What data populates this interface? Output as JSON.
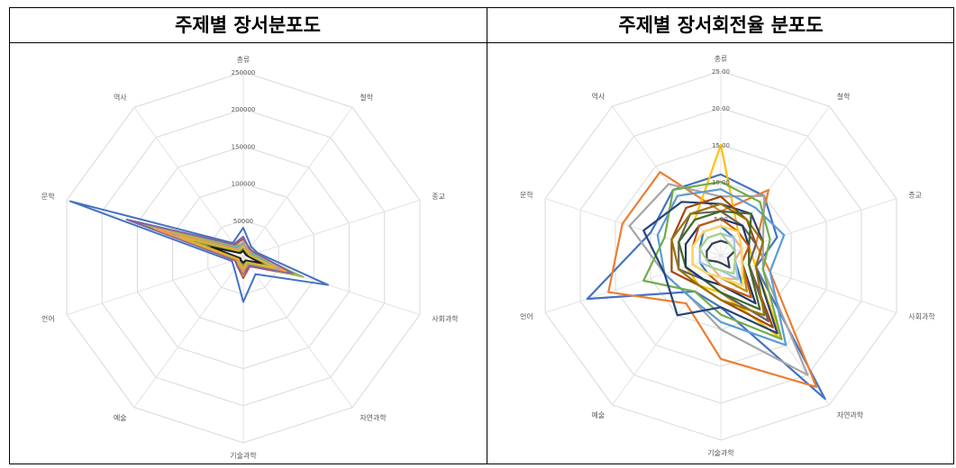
{
  "titles": {
    "left": "주제별 장서분포도",
    "right": "주제별 장서회전율 분포도"
  },
  "chart_data": [
    {
      "type": "radar",
      "title": "주제별 장서분포도",
      "categories": [
        "총류",
        "철학",
        "종교",
        "사회과학",
        "자연과학",
        "기술과학",
        "예술",
        "언어",
        "문학",
        "역사"
      ],
      "rlim": [
        0,
        250000
      ],
      "ticks": [
        "250000",
        "200000",
        "150000",
        "100000",
        "50000"
      ],
      "tick_values": [
        250000,
        200000,
        150000,
        100000,
        50000
      ],
      "grid": true,
      "series": [
        {
          "color": "#4472C4",
          "values": [
            40000,
            18000,
            20000,
            120000,
            28000,
            60000,
            20000,
            16000,
            245000,
            24000
          ]
        },
        {
          "color": "#C0504D",
          "values": [
            25000,
            15000,
            16000,
            80000,
            15000,
            28000,
            14000,
            12000,
            160000,
            20000
          ]
        },
        {
          "color": "#9BBB59",
          "values": [
            20000,
            12000,
            14000,
            85000,
            12000,
            24000,
            12000,
            10000,
            150000,
            18000
          ]
        },
        {
          "color": "#8064A2",
          "values": [
            28000,
            14000,
            18000,
            70000,
            14000,
            22000,
            14000,
            11000,
            165000,
            22000
          ]
        },
        {
          "color": "#4BACC6",
          "values": [
            18000,
            10000,
            12000,
            55000,
            10000,
            18000,
            10000,
            8000,
            110000,
            16000
          ]
        },
        {
          "color": "#F79646",
          "values": [
            16000,
            12000,
            10000,
            60000,
            9000,
            20000,
            11000,
            9000,
            125000,
            14000
          ]
        },
        {
          "color": "#A5A5A5",
          "values": [
            22000,
            9000,
            11000,
            50000,
            8000,
            15000,
            9000,
            7000,
            95000,
            12000
          ]
        },
        {
          "color": "#264478",
          "values": [
            12000,
            8000,
            9000,
            40000,
            7000,
            12000,
            8000,
            6000,
            80000,
            10000
          ]
        },
        {
          "color": "#7E9E3A",
          "values": [
            10000,
            7000,
            8000,
            35000,
            6000,
            10000,
            7000,
            5000,
            65000,
            9000
          ]
        },
        {
          "color": "#636363",
          "values": [
            8000,
            6000,
            7000,
            28000,
            5000,
            8000,
            6000,
            4000,
            50000,
            8000
          ]
        },
        {
          "color": "#1F1F1F",
          "values": [
            9000,
            5000,
            6000,
            25000,
            5000,
            7000,
            5000,
            4000,
            45000,
            7000
          ]
        },
        {
          "color": "#D7B82A",
          "values": [
            14000,
            9000,
            9000,
            45000,
            8000,
            14000,
            9000,
            7000,
            90000,
            11000
          ]
        }
      ]
    },
    {
      "type": "radar",
      "title": "주제별 장서회전율 분포도",
      "categories": [
        "총류",
        "철학",
        "종교",
        "사회과학",
        "자연과학",
        "기술과학",
        "예술",
        "언어",
        "문학",
        "역사"
      ],
      "rlim": [
        0,
        25
      ],
      "ticks": [
        "25.00",
        "20.00",
        "15.00",
        "10.00",
        "5.00"
      ],
      "tick_values": [
        25,
        20,
        15,
        10,
        5
      ],
      "grid": true,
      "series": [
        {
          "color": "#4472C4",
          "values": [
            11,
            10,
            8,
            5,
            24,
            7,
            6,
            19,
            10,
            11
          ]
        },
        {
          "color": "#ED7D31",
          "values": [
            6,
            11,
            5,
            7,
            22,
            14,
            8,
            16,
            14,
            14
          ]
        },
        {
          "color": "#A5A5A5",
          "values": [
            8,
            10,
            6,
            6,
            20,
            10,
            7,
            8,
            13,
            12
          ]
        },
        {
          "color": "#FFC000",
          "values": [
            15,
            4,
            4,
            5,
            14,
            5,
            5,
            5,
            6,
            6
          ]
        },
        {
          "color": "#5B9BD5",
          "values": [
            9,
            8,
            9,
            7,
            15,
            9,
            7,
            8,
            9,
            10
          ]
        },
        {
          "color": "#70AD47",
          "values": [
            10,
            9,
            7,
            6,
            14,
            8,
            6,
            11,
            8,
            11
          ]
        },
        {
          "color": "#264478",
          "values": [
            7,
            7,
            6,
            5,
            13,
            7,
            10,
            8,
            11,
            9
          ]
        },
        {
          "color": "#9E480E",
          "values": [
            8,
            6,
            5,
            4,
            12,
            6,
            5,
            7,
            7,
            8
          ]
        },
        {
          "color": "#636363",
          "values": [
            6,
            5,
            5,
            4,
            11,
            5,
            4,
            6,
            6,
            7
          ]
        },
        {
          "color": "#997300",
          "values": [
            7,
            6,
            6,
            5,
            10,
            6,
            5,
            6,
            7,
            7
          ]
        },
        {
          "color": "#43682B",
          "values": [
            6,
            7,
            4,
            4,
            9,
            5,
            4,
            5,
            6,
            6
          ]
        },
        {
          "color": "#1F3864",
          "values": [
            5,
            5,
            4,
            3,
            8,
            4,
            4,
            5,
            5,
            5
          ]
        },
        {
          "color": "#C55A11",
          "values": [
            5,
            4,
            4,
            3,
            7,
            4,
            3,
            4,
            4,
            5
          ]
        },
        {
          "color": "#BF9000",
          "values": [
            4,
            4,
            3,
            3,
            6,
            3,
            3,
            4,
            4,
            4
          ]
        },
        {
          "color": "#2E75B6",
          "values": [
            4,
            3,
            3,
            2,
            5,
            3,
            3,
            3,
            3,
            4
          ]
        },
        {
          "color": "#F4B183",
          "values": [
            3,
            3,
            3,
            2,
            4,
            3,
            2,
            3,
            3,
            3
          ]
        },
        {
          "color": "#FFD966",
          "values": [
            4,
            4,
            3,
            3,
            5,
            3,
            3,
            4,
            4,
            4
          ]
        },
        {
          "color": "#9DC3E6",
          "values": [
            3,
            3,
            2,
            2,
            4,
            2,
            2,
            3,
            3,
            3
          ]
        },
        {
          "color": "#333F50",
          "values": [
            2,
            2,
            2,
            1,
            2,
            1,
            1,
            2,
            2,
            2
          ]
        },
        {
          "color": "#A9D18E",
          "values": [
            3,
            2,
            2,
            2,
            3,
            2,
            2,
            2,
            3,
            3
          ]
        }
      ]
    }
  ]
}
